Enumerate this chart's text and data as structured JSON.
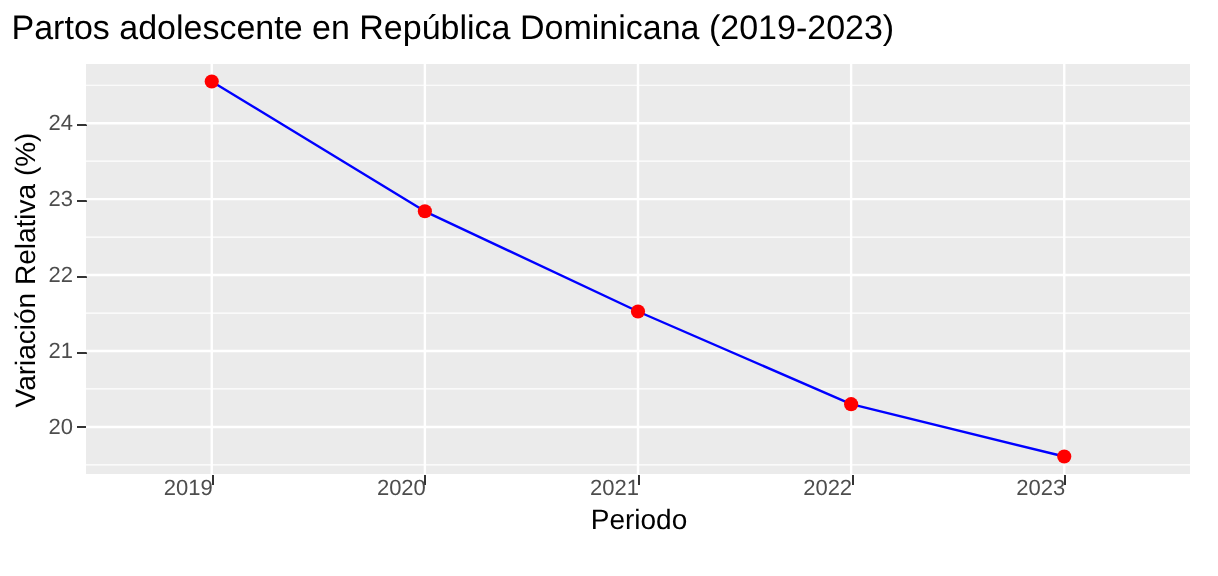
{
  "chart_data": {
    "type": "line",
    "title": "Partos adolescente en República Dominicana (2019-2023)",
    "xlabel": "Periodo",
    "ylabel": "Variación Relativa (%)",
    "categories": [
      "2019",
      "2020",
      "2021",
      "2022",
      "2023"
    ],
    "series": [
      {
        "color": "#0000ff",
        "colors": [
          "#ff0000",
          "#ff0000",
          "#ff0000",
          "#ff0000",
          "#ff0000"
        ],
        "values": [
          24.55,
          22.84,
          21.52,
          20.3,
          19.61
        ]
      }
    ],
    "marker": "circle",
    "ylim": [
      19.38,
      24.78
    ],
    "yticks": [
      {
        "value": 19.5,
        "label": null
      },
      20,
      {
        "value": 20.5,
        "label": null
      },
      21,
      {
        "value": 21.5,
        "label": null
      },
      22,
      {
        "value": 22.5,
        "label": null
      },
      23,
      {
        "value": 23.5,
        "label": null
      },
      24,
      {
        "value": 24.5,
        "label": null
      }
    ],
    "grid": true
  }
}
